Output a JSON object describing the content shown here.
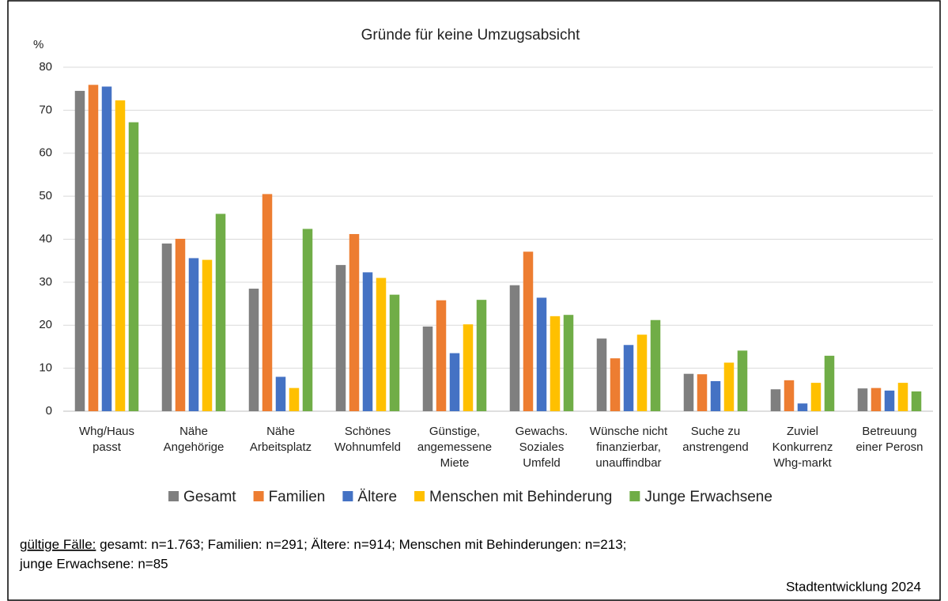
{
  "chart_data": {
    "type": "bar",
    "title": "Gründe für keine Umzugsabsicht",
    "y_label": "%",
    "categories": [
      [
        "Whg/Haus",
        "passt"
      ],
      [
        "Nähe",
        "Angehörige"
      ],
      [
        "Nähe",
        "Arbeitsplatz"
      ],
      [
        "Schönes",
        "Wohnumfeld"
      ],
      [
        "Günstige,",
        "angemessene",
        "Miete"
      ],
      [
        "Gewachs.",
        "Soziales",
        "Umfeld"
      ],
      [
        "Wünsche nicht",
        "finanzierbar,",
        "unauffindbar"
      ],
      [
        "Suche zu",
        "anstrengend"
      ],
      [
        "Zuviel",
        "Konkurrenz",
        "Whg-markt"
      ],
      [
        "Betreuung",
        "einer Perosn"
      ]
    ],
    "series": [
      {
        "name": "Gesamt",
        "color": "#7f7f7f",
        "values": [
          74.5,
          39,
          28.5,
          34,
          19.7,
          29.3,
          16.9,
          8.7,
          5.1,
          5.3
        ]
      },
      {
        "name": "Familien",
        "color": "#ed7d31",
        "values": [
          75.9,
          40.1,
          50.5,
          41.2,
          25.8,
          37.1,
          12.3,
          8.6,
          7.2,
          5.4
        ]
      },
      {
        "name": "Ältere",
        "color": "#4472c4",
        "values": [
          75.5,
          35.6,
          8,
          32.3,
          13.5,
          26.4,
          15.4,
          7,
          1.8,
          4.8
        ]
      },
      {
        "name": "Menschen mit Behinderung",
        "color": "#ffc000",
        "values": [
          72.3,
          35.2,
          5.4,
          31,
          20.2,
          22.1,
          17.8,
          11.3,
          6.6,
          6.6
        ]
      },
      {
        "name": "Junge Erwachsene",
        "color": "#70ad47",
        "values": [
          67.2,
          45.9,
          42.4,
          27.1,
          25.9,
          22.4,
          21.2,
          14.1,
          12.9,
          4.6
        ]
      }
    ],
    "ylim": [
      0,
      80
    ],
    "yticks": [
      0,
      10,
      20,
      30,
      40,
      50,
      60,
      70,
      80
    ],
    "grid": true,
    "legend": "bottom",
    "footnote": {
      "label": "gültige Fälle:",
      "lines": [
        " gesamt: n=1.763; Familien: n=291; Ältere: n=914; Menschen mit Behinderungen: n=213;",
        "junge Erwachsene: n=85"
      ]
    },
    "source": "Stadtentwicklung 2024"
  }
}
